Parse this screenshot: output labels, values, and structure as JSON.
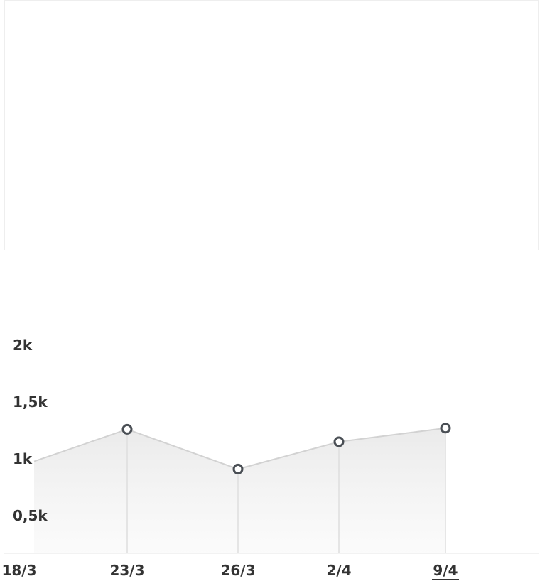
{
  "chart_data": {
    "type": "area",
    "title": "",
    "xlabel": "",
    "ylabel": "",
    "x_ticks": [
      "18/3",
      "23/3",
      "26/3",
      "2/4",
      "9/4"
    ],
    "selected_x_tick": "9/4",
    "y_ticks": [
      "0,5k",
      "1k",
      "1,5k",
      "2k"
    ],
    "ylim": [
      0,
      2000
    ],
    "grid": false,
    "series": [
      {
        "points": [
          {
            "x": "18/3",
            "y": 990
          },
          {
            "x": "23/3",
            "y": 1260
          },
          {
            "x": "26/3",
            "y": 910
          },
          {
            "x": "2/4",
            "y": 1150
          },
          {
            "x": "9/4",
            "y": 1270
          }
        ]
      }
    ],
    "colors": {
      "line": "#d2d2d2",
      "marker_stroke": "#4a4f55",
      "marker_fill": "#ffffff",
      "area": "#ececec",
      "text": "#333333"
    }
  }
}
